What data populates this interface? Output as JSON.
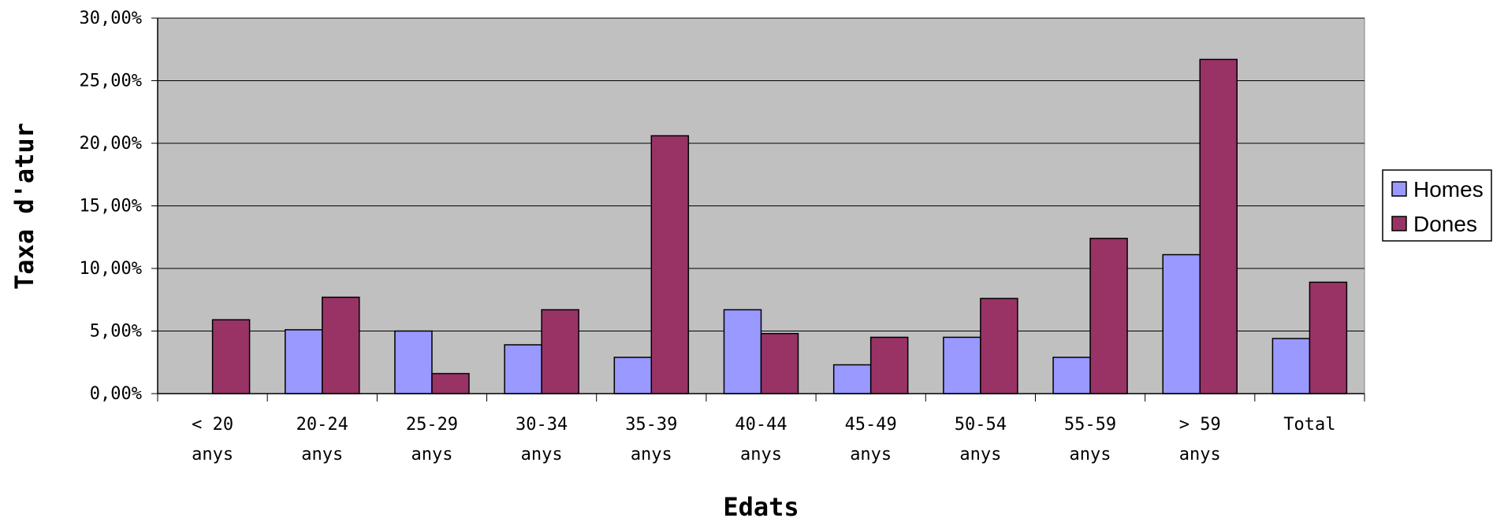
{
  "chart_data": {
    "type": "bar",
    "title": "",
    "xlabel": "Edats",
    "ylabel": "Taxa d'atur",
    "ylim": [
      0,
      30
    ],
    "y_ticks": [
      {
        "value": 0,
        "label": "0,00%"
      },
      {
        "value": 5,
        "label": "5,00%"
      },
      {
        "value": 10,
        "label": "10,00%"
      },
      {
        "value": 15,
        "label": "15,00%"
      },
      {
        "value": 20,
        "label": "20,00%"
      },
      {
        "value": 25,
        "label": "25,00%"
      },
      {
        "value": 30,
        "label": "30,00%"
      }
    ],
    "categories": [
      [
        "< 20",
        "anys"
      ],
      [
        "20-24",
        "anys"
      ],
      [
        "25-29",
        "anys"
      ],
      [
        "30-34",
        "anys"
      ],
      [
        "35-39",
        "anys"
      ],
      [
        "40-44",
        "anys"
      ],
      [
        "45-49",
        "anys"
      ],
      [
        "50-54",
        "anys"
      ],
      [
        "55-59",
        "anys"
      ],
      [
        "> 59",
        "anys"
      ],
      [
        "Total"
      ]
    ],
    "series": [
      {
        "name": "Homes",
        "color": "#9999ff",
        "values": [
          0,
          5.1,
          5.0,
          3.9,
          2.9,
          6.7,
          2.3,
          4.5,
          2.9,
          11.1,
          4.4
        ]
      },
      {
        "name": "Dones",
        "color": "#993366",
        "values": [
          5.9,
          7.7,
          1.6,
          6.7,
          20.6,
          4.8,
          4.5,
          7.6,
          12.4,
          26.7,
          8.9
        ]
      }
    ],
    "plot_background": "#c0c0c0",
    "grid": true,
    "legend_position": "right"
  }
}
